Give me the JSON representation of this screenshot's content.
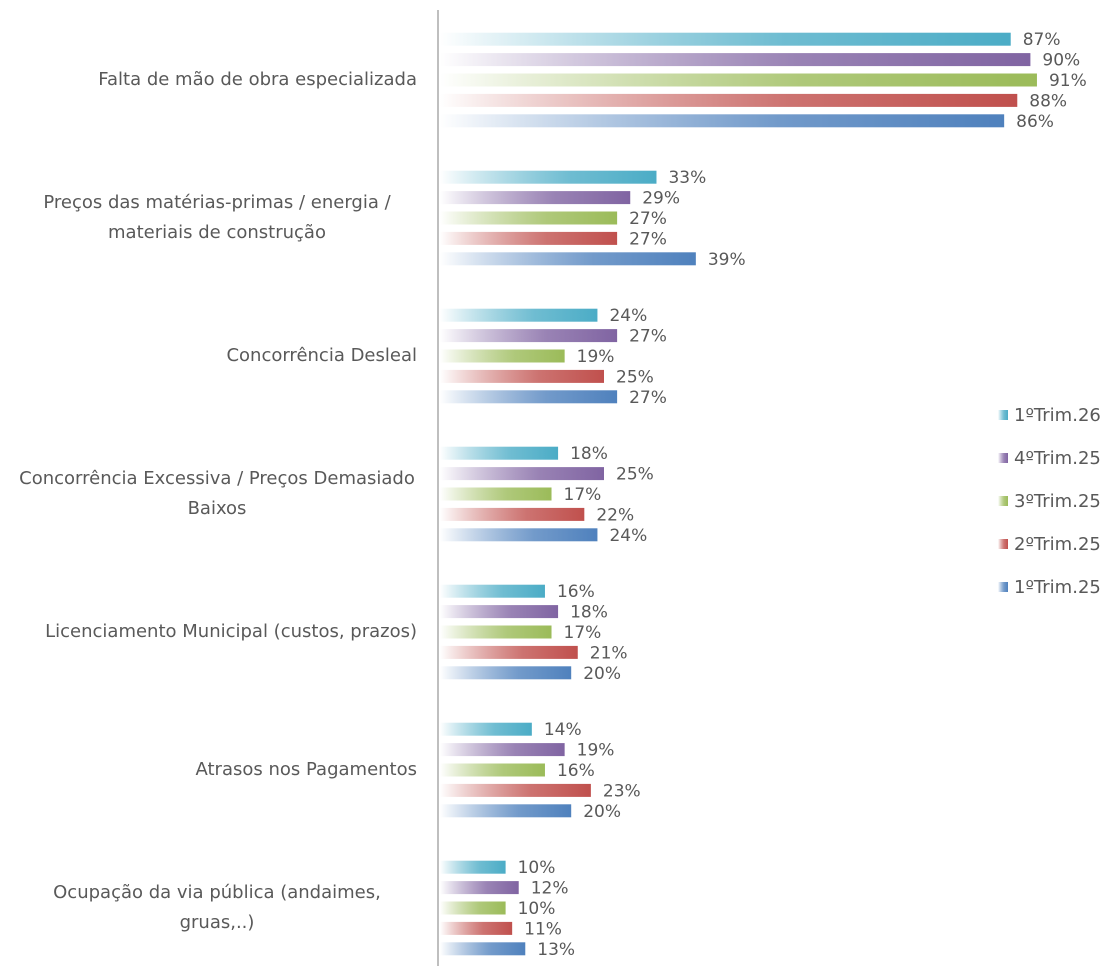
{
  "chart_data": {
    "type": "bar",
    "orientation": "horizontal",
    "categories": [
      "Falta de mão de obra especializada",
      "Preços das matérias-primas / energia / materiais de construção",
      "Concorrência Desleal",
      "Concorrência Excessiva / Preços Demasiado Baixos",
      "Licenciamento Municipal (custos, prazos)",
      "Atrasos nos Pagamentos",
      "Ocupação da via pública (andaimes, gruas,..)"
    ],
    "xlim": [
      0,
      100
    ],
    "legend": "right",
    "series": [
      {
        "name": "1ºTrim.26",
        "color": "#4bacc6",
        "values": [
          87,
          33,
          24,
          18,
          16,
          14,
          10
        ],
        "value_labels": [
          "87%",
          "33%",
          "24%",
          "18%",
          "16%",
          "14%",
          "10%"
        ]
      },
      {
        "name": "4ºTrim.25",
        "color": "#8064a2",
        "values": [
          90,
          29,
          27,
          25,
          18,
          19,
          12
        ],
        "value_labels": [
          "90%",
          "29%",
          "27%",
          "25%",
          "18%",
          "19%",
          "12%"
        ]
      },
      {
        "name": "3ºTrim.25",
        "color": "#9bbb59",
        "values": [
          91,
          27,
          19,
          17,
          17,
          16,
          10
        ],
        "value_labels": [
          "91%",
          "27%",
          "19%",
          "17%",
          "17%",
          "16%",
          "10%"
        ]
      },
      {
        "name": "2ºTrim.25",
        "color": "#c0504d",
        "values": [
          88,
          27,
          25,
          22,
          21,
          23,
          11
        ],
        "value_labels": [
          "88%",
          "27%",
          "25%",
          "22%",
          "21%",
          "23%",
          "11%"
        ]
      },
      {
        "name": "1ºTrim.25",
        "color": "#4f81bd",
        "values": [
          86,
          39,
          27,
          24,
          20,
          20,
          13
        ],
        "value_labels": [
          "86%",
          "39%",
          "27%",
          "24%",
          "20%",
          "20%",
          "13%"
        ]
      }
    ]
  }
}
